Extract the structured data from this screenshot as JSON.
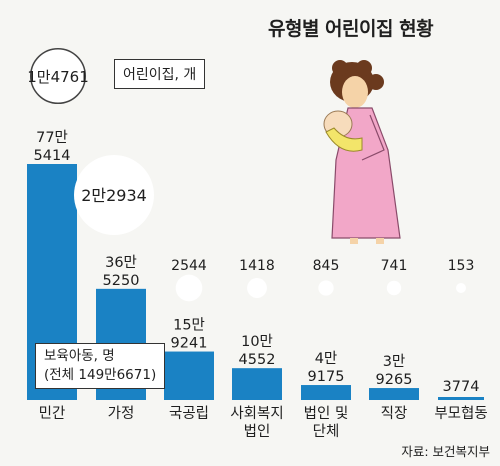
{
  "title": "유형별 어린이집 현황",
  "source": "자료: 보건복지부",
  "legend": {
    "centers_sample": "1만4761",
    "centers_label": "어린이집, 개",
    "children_label": "보육아동, 명",
    "children_total": "(전체 149만6671)"
  },
  "chart_data": {
    "type": "bar",
    "title": "유형별 어린이집 현황",
    "categories": [
      "민간",
      "가정",
      "국공립",
      "사회복지\n법인",
      "법인 및\n단체",
      "직장",
      "부모협동"
    ],
    "series": [
      {
        "name": "보육아동, 명",
        "values": [
          775414,
          365250,
          159241,
          104552,
          49175,
          39265,
          3774
        ],
        "labels": [
          "77만\n5414",
          "36만\n5250",
          "15만\n9241",
          "10만\n4552",
          "4만\n9175",
          "3만\n9265",
          "3774"
        ]
      },
      {
        "name": "어린이집, 개",
        "values": [
          14761,
          22934,
          2544,
          1418,
          845,
          741,
          153
        ],
        "labels": [
          "1만4761",
          "2만2934",
          "2544",
          "1418",
          "845",
          "741",
          "153"
        ]
      }
    ],
    "total_children": 1496671
  }
}
